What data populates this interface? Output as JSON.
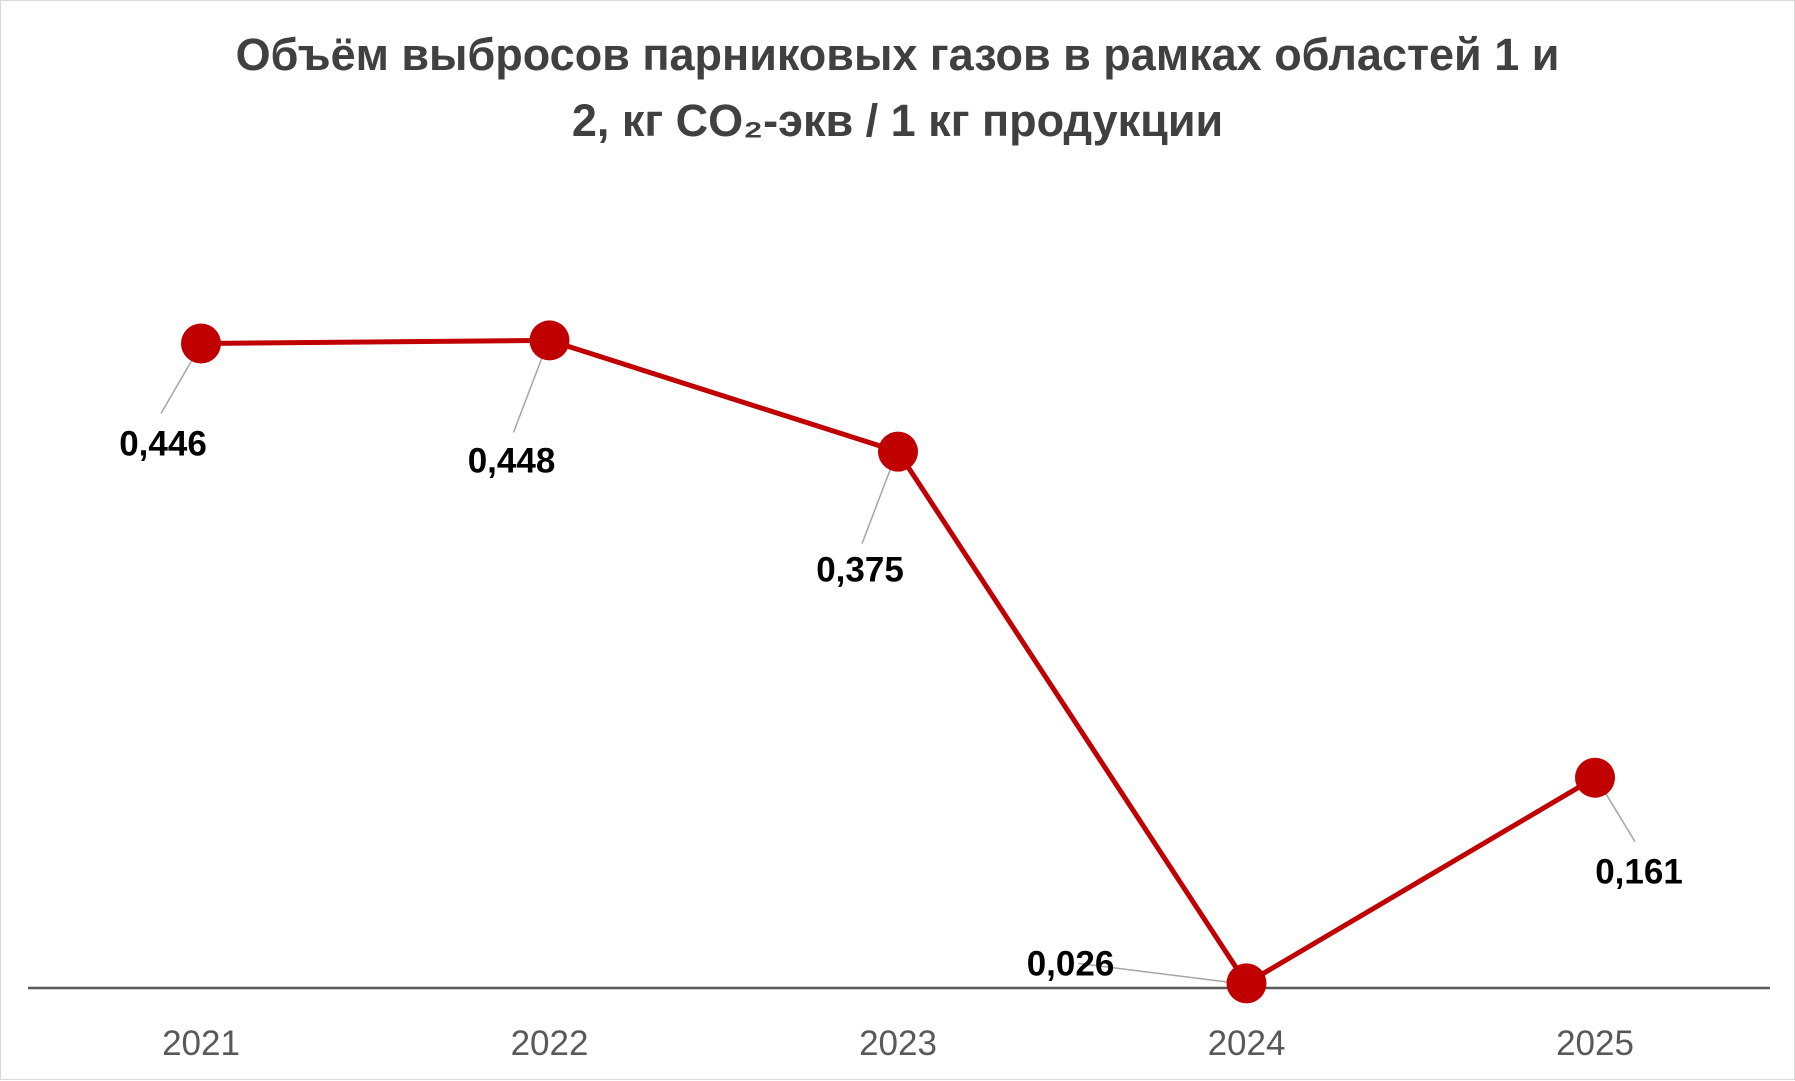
{
  "chart_data": {
    "type": "line",
    "title_line1": "Объём выбросов парниковых газов в рамках областей 1 и",
    "title_line2": "2, кг CO₂-экв / 1 кг продукции",
    "categories": [
      "2021",
      "2022",
      "2023",
      "2024",
      "2025"
    ],
    "values": [
      0.446,
      0.448,
      0.375,
      0.026,
      0.161
    ],
    "data_labels": [
      "0,446",
      "0,448",
      "0,375",
      "0,026",
      "0,161"
    ],
    "ylim": [
      0,
      0.6
    ],
    "grid": false,
    "legend": "none",
    "colors": {
      "line": "#c00000",
      "marker": "#c00000",
      "axis": "#595959",
      "leader": "#a6a6a6"
    }
  }
}
